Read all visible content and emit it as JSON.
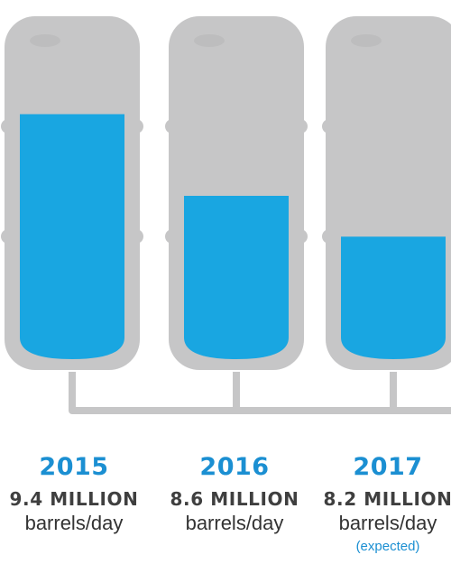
{
  "colors": {
    "barrel_outline": "#c6c6c7",
    "barrel_fill": "#19a6e1",
    "barrel_lid_hole": "#bdbdbe",
    "accent_text": "#1b8fd2",
    "body_text": "#333333"
  },
  "chart_data": {
    "type": "bar",
    "categories": [
      "2015",
      "2016",
      "2017"
    ],
    "values": [
      9.4,
      8.6,
      8.2
    ],
    "ylim": [
      7.0,
      9.9
    ],
    "unit_label": "barrels/day",
    "amount_labels": [
      "9.4 MILLION",
      "8.6 MILLION",
      "8.2 MILLION"
    ],
    "notes": [
      "",
      "",
      "(expected)"
    ]
  }
}
